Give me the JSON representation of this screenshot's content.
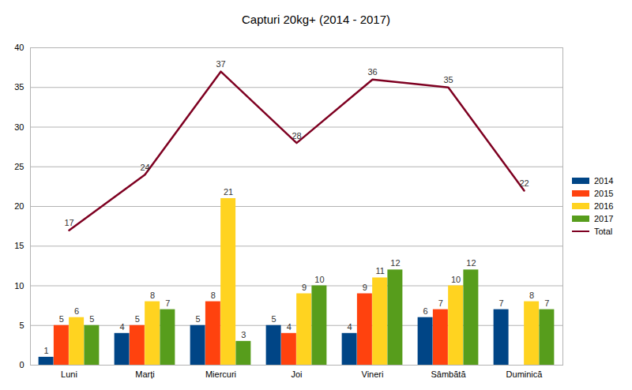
{
  "chart_data": {
    "type": "bar",
    "title": "Capturi 20kg+ (2014 - 2017)",
    "categories": [
      "Luni",
      "Marți",
      "Miercuri",
      "Joi",
      "Vineri",
      "Sâmbătă",
      "Duminică"
    ],
    "series": [
      {
        "name": "2014",
        "color": "#004586",
        "values": [
          1,
          4,
          5,
          5,
          4,
          6,
          7
        ]
      },
      {
        "name": "2015",
        "color": "#ff420e",
        "values": [
          5,
          5,
          8,
          4,
          9,
          7,
          null
        ]
      },
      {
        "name": "2016",
        "color": "#ffd320",
        "values": [
          6,
          8,
          21,
          9,
          11,
          10,
          8
        ]
      },
      {
        "name": "2017",
        "color": "#579d1c",
        "values": [
          5,
          7,
          3,
          10,
          12,
          12,
          7
        ]
      },
      {
        "name": "Total",
        "color": "#7e0021",
        "type": "line",
        "values": [
          17,
          24,
          37,
          28,
          36,
          35,
          22
        ]
      }
    ],
    "ylim": [
      0,
      40
    ],
    "yticks": [
      0,
      5,
      10,
      15,
      20,
      25,
      30,
      35,
      40
    ],
    "grid": true,
    "legend": "right",
    "data_labels": true
  }
}
